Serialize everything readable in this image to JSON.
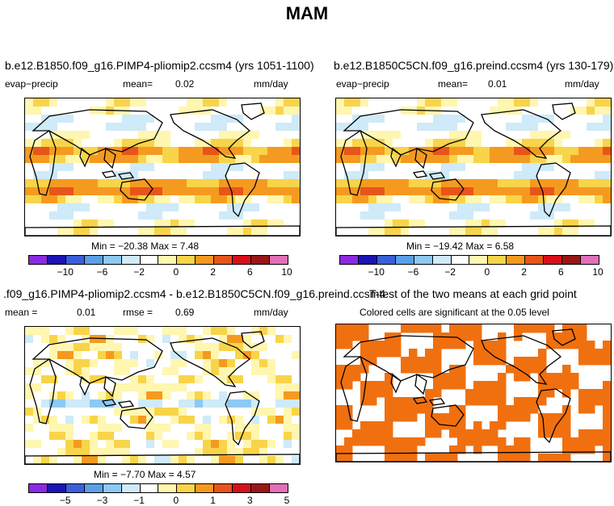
{
  "title": "MAM",
  "panels": [
    {
      "title": "b.e12.B1850.f09_g16.PIMP4-pliomip2.ccsm4 (yrs 1051-1100)",
      "variable": "evap−precip",
      "mean_label": "mean=",
      "mean": "0.02",
      "units": "mm/day",
      "stats": "Min = −20.38 Max =    7.48",
      "colorbar_ticks": [
        "−10",
        "−6",
        "−2",
        "0",
        "2",
        "6",
        "10"
      ]
    },
    {
      "title": "b.e12.B1850C5CN.f09_g16.preind.ccsm4 (yrs 130-179)",
      "variable": "evap−precip",
      "mean_label": "mean=",
      "mean": "0.01",
      "units": "mm/day",
      "stats": "Min = −19.42 Max =    6.58",
      "colorbar_ticks": [
        "−10",
        "−6",
        "−2",
        "0",
        "2",
        "6",
        "10"
      ]
    },
    {
      "title": ".f09_g16.PIMP4-pliomip2.ccsm4 - b.e12.B1850C5CN.f09_g16.preind.ccsm4",
      "mean_label": "mean =",
      "mean": "0.01",
      "rmse_label": "rmse =",
      "rmse": "0.69",
      "units": "mm/day",
      "stats": "Min =  −7.70 Max =    4.57",
      "colorbar_ticks": [
        "−5",
        "−3",
        "−1",
        "0",
        "1",
        "3",
        "5"
      ]
    },
    {
      "title": "T-test of the two means at each grid point",
      "subtitle": "Colored cells are significant at the 0.05 level"
    }
  ],
  "colors": {
    "scale": [
      "#8a2be2",
      "#1c14b4",
      "#3a5fd8",
      "#5aa0e8",
      "#8ec9f2",
      "#cfeaf8",
      "#ffffff",
      "#fff6b0",
      "#f8d44a",
      "#f59a20",
      "#e8551a",
      "#d8101a",
      "#981818",
      "#e070b8"
    ],
    "ttest_fill": "#f07010",
    "land_line": "#000000"
  }
}
